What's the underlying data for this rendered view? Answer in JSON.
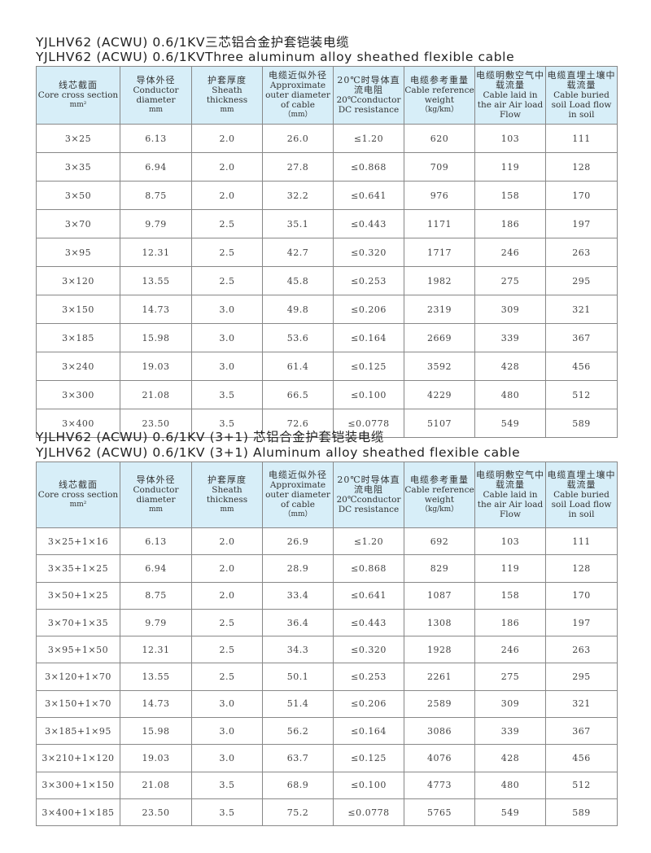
{
  "section1": {
    "title_cn": "YJLHV62 (ACWU) 0.6/1KV三芯铝合金护套铠装电缆",
    "title_en": "YJLHV62 (ACWU) 0.6/1KVThree aluminum alloy sheathed flexible cable"
  },
  "section2": {
    "title_cn": "YJLHV62 (ACWU) 0.6/1KV (3+1) 芯铝合金护套铠装电缆",
    "title_en": "YJLHV62 (ACWU) 0.6/1KV (3+1) Aluminum alloy sheathed flexible cable"
  },
  "headers": [
    {
      "cn": "线芯截面",
      "en": "Core cross section",
      "unit": "mm²"
    },
    {
      "cn": "导体外径",
      "en": "Conductor diameter",
      "unit": "mm"
    },
    {
      "cn": "护套厚度",
      "en": "Sheath thickness",
      "unit": "mm"
    },
    {
      "cn": "电缆近似外径",
      "en": "Approximate outer diameter of cable",
      "unit": "（mm）"
    },
    {
      "cn": "20℃时导体直流电阻",
      "en": "20℃conductor DC resistance",
      "unit": ""
    },
    {
      "cn": "电缆参考重量",
      "en": "Cable reference weight",
      "unit": "（kg/km）"
    },
    {
      "cn": "电缆明敷空气中载流量",
      "en": "Cable laid in the air Air load Flow",
      "unit": ""
    },
    {
      "cn": "电缆直埋土壤中载流量",
      "en": "Cable buried soil Load flow in soil",
      "unit": ""
    }
  ],
  "table1": [
    [
      "3×25",
      "6.13",
      "2.0",
      "26.0",
      "≤1.20",
      "620",
      "103",
      "111"
    ],
    [
      "3×35",
      "6.94",
      "2.0",
      "27.8",
      "≤0.868",
      "709",
      "119",
      "128"
    ],
    [
      "3×50",
      "8.75",
      "2.0",
      "32.2",
      "≤0.641",
      "976",
      "158",
      "170"
    ],
    [
      "3×70",
      "9.79",
      "2.5",
      "35.1",
      "≤0.443",
      "1171",
      "186",
      "197"
    ],
    [
      "3×95",
      "12.31",
      "2.5",
      "42.7",
      "≤0.320",
      "1717",
      "246",
      "263"
    ],
    [
      "3×120",
      "13.55",
      "2.5",
      "45.8",
      "≤0.253",
      "1982",
      "275",
      "295"
    ],
    [
      "3×150",
      "14.73",
      "3.0",
      "49.8",
      "≤0.206",
      "2319",
      "309",
      "321"
    ],
    [
      "3×185",
      "15.98",
      "3.0",
      "53.6",
      "≤0.164",
      "2669",
      "339",
      "367"
    ],
    [
      "3×240",
      "19.03",
      "3.0",
      "61.4",
      "≤0.125",
      "3592",
      "428",
      "456"
    ],
    [
      "3×300",
      "21.08",
      "3.5",
      "66.5",
      "≤0.100",
      "4229",
      "480",
      "512"
    ],
    [
      "3×400",
      "23.50",
      "3.5",
      "72.6",
      "≤0.0778",
      "5107",
      "549",
      "589"
    ]
  ],
  "table2": [
    [
      "3×25+1×16",
      "6.13",
      "2.0",
      "26.9",
      "≤1.20",
      "692",
      "103",
      "111"
    ],
    [
      "3×35+1×25",
      "6.94",
      "2.0",
      "28.9",
      "≤0.868",
      "829",
      "119",
      "128"
    ],
    [
      "3×50+1×25",
      "8.75",
      "2.0",
      "33.4",
      "≤0.641",
      "1087",
      "158",
      "170"
    ],
    [
      "3×70+1×35",
      "9.79",
      "2.5",
      "36.4",
      "≤0.443",
      "1308",
      "186",
      "197"
    ],
    [
      "3×95+1×50",
      "12.31",
      "2.5",
      "34.3",
      "≤0.320",
      "1928",
      "246",
      "263"
    ],
    [
      "3×120+1×70",
      "13.55",
      "2.5",
      "50.1",
      "≤0.253",
      "2261",
      "275",
      "295"
    ],
    [
      "3×150+1×70",
      "14.73",
      "3.0",
      "51.4",
      "≤0.206",
      "2589",
      "309",
      "321"
    ],
    [
      "3×185+1×95",
      "15.98",
      "3.0",
      "56.2",
      "≤0.164",
      "3086",
      "339",
      "367"
    ],
    [
      "3×210+1×120",
      "19.03",
      "3.0",
      "63.7",
      "≤0.125",
      "4076",
      "428",
      "456"
    ],
    [
      "3×300+1×150",
      "21.08",
      "3.5",
      "68.9",
      "≤0.100",
      "4773",
      "480",
      "512"
    ],
    [
      "3×400+1×185",
      "23.50",
      "3.5",
      "75.2",
      "≤0.0778",
      "5765",
      "549",
      "589"
    ]
  ],
  "colors": {
    "header_bg": "#d7eef8",
    "border": "#888888"
  }
}
